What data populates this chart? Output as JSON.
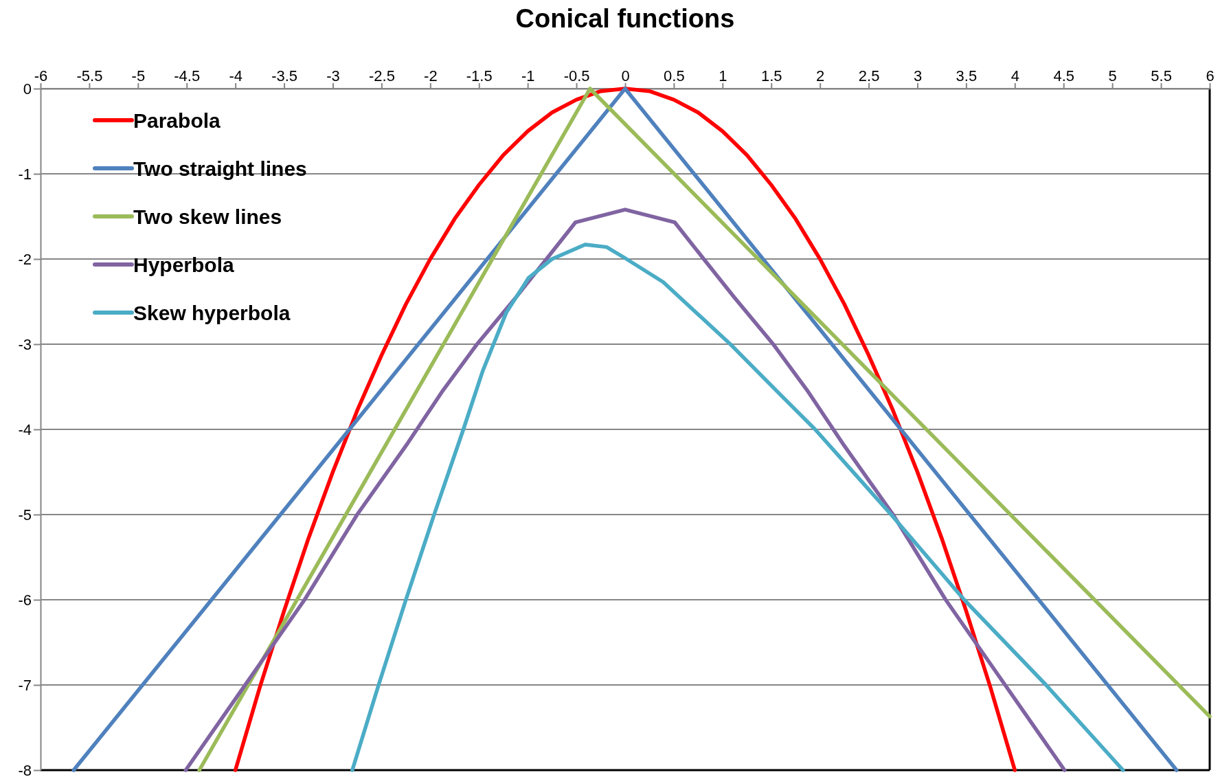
{
  "chart_data": {
    "type": "line",
    "title": "Conical functions",
    "xlim": [
      -6,
      6
    ],
    "xticks": [
      -6,
      -5.5,
      -5,
      -4.5,
      -4,
      -3.5,
      -3,
      -2.5,
      -2,
      -1.5,
      -1,
      -0.5,
      0,
      0.5,
      1,
      1.5,
      2,
      2.5,
      3,
      3.5,
      4,
      4.5,
      5,
      5.5,
      6
    ],
    "ylim": [
      -8,
      0
    ],
    "yticks": [
      0,
      -1,
      -2,
      -3,
      -4,
      -5,
      -6,
      -7,
      -8
    ],
    "grid": "y",
    "legend": "top left",
    "marker": "none",
    "line_style": "solid",
    "series": [
      {
        "name": "Parabola",
        "color": "#ff0000",
        "x": [
          -4,
          -3.75,
          -3.5,
          -3.25,
          -3,
          -2.75,
          -2.5,
          -2.25,
          -2,
          -1.75,
          -1.5,
          -1.25,
          -1,
          -0.75,
          -0.5,
          -0.25,
          0,
          0.25,
          0.5,
          0.75,
          1,
          1.25,
          1.5,
          1.75,
          2,
          2.25,
          2.5,
          2.75,
          3,
          3.25,
          3.5,
          3.75,
          4
        ],
        "values": [
          -8,
          -7.03,
          -6.13,
          -5.28,
          -4.5,
          -3.78,
          -3.13,
          -2.53,
          -2,
          -1.53,
          -1.13,
          -0.78,
          -0.5,
          -0.28,
          -0.13,
          -0.03,
          0,
          -0.03,
          -0.13,
          -0.28,
          -0.5,
          -0.78,
          -1.13,
          -1.53,
          -2,
          -2.53,
          -3.13,
          -3.78,
          -4.5,
          -5.28,
          -6.13,
          -7.03,
          -8
        ]
      },
      {
        "name": "Two straight lines",
        "color": "#4f81bd",
        "x": [
          -5.66,
          0,
          5.66
        ],
        "values": [
          -8,
          0,
          -8
        ]
      },
      {
        "name": "Two skew lines",
        "color": "#9bbb59",
        "x": [
          -4.37,
          -0.36,
          6
        ],
        "values": [
          -8,
          0,
          -7.37
        ]
      },
      {
        "name": "Hyperbola",
        "color": "#8064a2",
        "x": [
          -4.51,
          -3.9,
          -3.29,
          -2.75,
          -2.23,
          -1.88,
          -1.52,
          -1.12,
          -0.8,
          -0.51,
          0,
          0.51,
          0.8,
          1.12,
          1.52,
          1.88,
          2.23,
          2.75,
          3.29,
          3.9,
          4.51
        ],
        "values": [
          -8,
          -7,
          -6,
          -5,
          -4.16,
          -3.56,
          -3,
          -2.45,
          -1.99,
          -1.57,
          -1.42,
          -1.57,
          -1.99,
          -2.45,
          -3,
          -3.56,
          -4.16,
          -5,
          -6,
          -7,
          -8
        ]
      },
      {
        "name": "Skew hyperbola",
        "color": "#4bacc6",
        "x": [
          -2.8,
          -2.53,
          -2.25,
          -1.96,
          -1.66,
          -1.46,
          -1.22,
          -0.99,
          -0.75,
          -0.41,
          -0.19,
          0,
          0.39,
          1.08,
          1.6,
          1.95,
          2.73,
          3.48,
          4.32,
          5.11
        ],
        "values": [
          -8,
          -7,
          -6,
          -5,
          -4,
          -3.31,
          -2.63,
          -2.22,
          -2,
          -1.83,
          -1.86,
          -1.99,
          -2.27,
          -3,
          -3.6,
          -4,
          -5,
          -6,
          -7,
          -8
        ]
      }
    ]
  }
}
